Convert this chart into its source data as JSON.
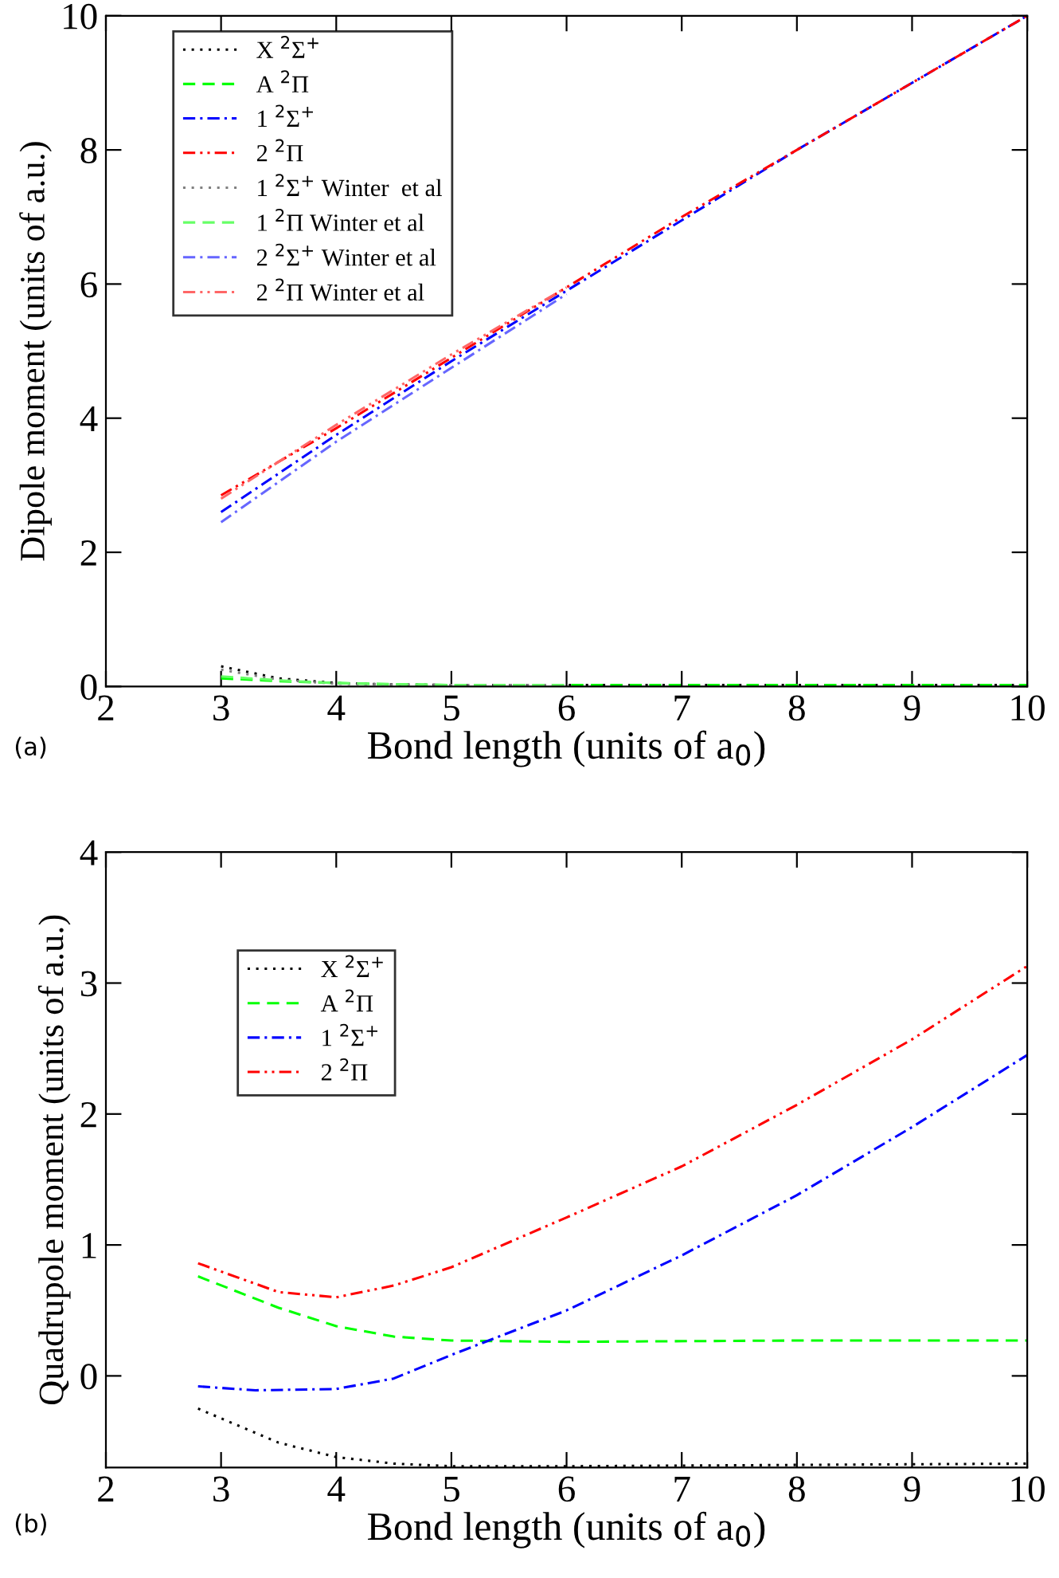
{
  "chart_data": [
    {
      "type": "line",
      "xlabel": "Bond length (units of a$_{0}$)",
      "ylabel": "Dipole moment (units of a.u.)",
      "xlim": [
        2,
        10
      ],
      "ylim": [
        0,
        10
      ],
      "xticks": [
        2,
        3,
        4,
        5,
        6,
        7,
        8,
        9,
        10
      ],
      "yticks": [
        0,
        2,
        4,
        6,
        8,
        10
      ],
      "grid": false,
      "legend": "top left",
      "marker": "none",
      "annotations": [
        "(a)"
      ],
      "series": [
        {
          "name": "X $^{2}$Σ$^{+}$",
          "color": "#000000",
          "line_style": "dotted",
          "x": [
            3,
            3.5,
            4,
            4.5,
            5,
            6,
            8,
            10
          ],
          "values": [
            0.3,
            0.12,
            0.05,
            0.03,
            0.02,
            0.02,
            0.02,
            0.02
          ]
        },
        {
          "name": "A $^{2}$Π",
          "color": "#00ff00",
          "line_style": "dashed",
          "x": [
            3,
            3.5,
            4,
            4.5,
            5,
            6,
            8,
            10
          ],
          "values": [
            0.12,
            0.08,
            0.05,
            0.03,
            0.02,
            0.02,
            0.02,
            0.02
          ]
        },
        {
          "name": "1 $^{2}$Σ$^{+}$",
          "color": "#0000ff",
          "line_style": "dashdot",
          "x": [
            3,
            4,
            5,
            6,
            7,
            8,
            9,
            10
          ],
          "values": [
            2.6,
            3.75,
            4.85,
            5.9,
            6.95,
            8.0,
            9.0,
            10.0
          ]
        },
        {
          "name": "2 $^{2}$Π",
          "color": "#ff0000",
          "line_style": "dashdotdot",
          "x": [
            3,
            4,
            5,
            6,
            7,
            8,
            9,
            10
          ],
          "values": [
            2.85,
            3.85,
            4.9,
            5.95,
            7.0,
            8.0,
            9.0,
            10.0
          ]
        },
        {
          "name": "1 $^{2}$Σ$^{+}$ Winter  et al",
          "color": "#808080",
          "line_style": "dotted",
          "x": [
            3,
            3.5,
            4,
            5,
            6
          ],
          "values": [
            0.25,
            0.1,
            0.04,
            0.02,
            0.02
          ]
        },
        {
          "name": "1 $^{2}$Π Winter et al",
          "color": "#66ff66",
          "line_style": "dashed",
          "x": [
            3,
            3.5,
            4,
            5,
            6
          ],
          "values": [
            0.15,
            0.09,
            0.05,
            0.02,
            0.02
          ]
        },
        {
          "name": "2 $^{2}$Σ$^{+}$ Winter et al",
          "color": "#6666ff",
          "line_style": "dashdot",
          "x": [
            3,
            4,
            5,
            6
          ],
          "values": [
            2.45,
            3.65,
            4.75,
            5.85
          ]
        },
        {
          "name": "2 $^{2}$Π Winter et al",
          "color": "#ff6666",
          "line_style": "dashdotdot",
          "x": [
            3,
            4,
            5,
            6
          ],
          "values": [
            2.8,
            3.9,
            4.95,
            5.95
          ]
        }
      ]
    },
    {
      "type": "line",
      "xlabel": "Bond length (units of a$_{0}$)",
      "ylabel": "Quadrupole moment (units of a.u.)",
      "xlim": [
        2,
        10
      ],
      "ylim": [
        -0.7,
        4
      ],
      "xticks": [
        2,
        3,
        4,
        5,
        6,
        7,
        8,
        9,
        10
      ],
      "yticks": [
        0,
        1,
        2,
        3,
        4
      ],
      "grid": false,
      "legend": "top left",
      "marker": "none",
      "annotations": [
        "(b)"
      ],
      "series": [
        {
          "name": "X $^{2}$Σ$^{+}$",
          "color": "#000000",
          "line_style": "dotted",
          "x": [
            2.8,
            3.5,
            4,
            4.5,
            5,
            6,
            8,
            10
          ],
          "values": [
            -0.25,
            -0.51,
            -0.62,
            -0.67,
            -0.69,
            -0.69,
            -0.68,
            -0.67
          ]
        },
        {
          "name": "A $^{2}$Π",
          "color": "#00ff00",
          "line_style": "dashed",
          "x": [
            2.8,
            3.5,
            4,
            4.5,
            5,
            6,
            8,
            10
          ],
          "values": [
            0.76,
            0.52,
            0.38,
            0.3,
            0.27,
            0.26,
            0.27,
            0.27
          ]
        },
        {
          "name": "1 $^{2}$Σ$^{+}$",
          "color": "#0000ff",
          "line_style": "dashdot",
          "x": [
            2.8,
            3.3,
            4,
            4.5,
            5,
            6,
            7,
            8,
            9,
            10
          ],
          "values": [
            -0.08,
            -0.11,
            -0.1,
            -0.02,
            0.16,
            0.5,
            0.92,
            1.38,
            1.9,
            2.45
          ]
        },
        {
          "name": "2 $^{2}$Π",
          "color": "#ff0000",
          "line_style": "dashdotdot",
          "x": [
            2.8,
            3.5,
            4,
            4.5,
            5,
            6,
            7,
            8,
            9,
            10
          ],
          "values": [
            0.86,
            0.64,
            0.6,
            0.69,
            0.83,
            1.21,
            1.6,
            2.07,
            2.57,
            3.13
          ]
        }
      ]
    }
  ]
}
